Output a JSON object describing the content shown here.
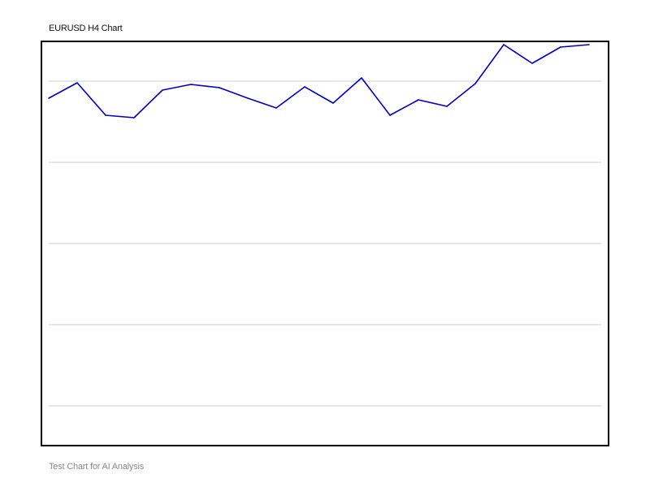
{
  "chart_data": {
    "type": "line",
    "title": "EURUSD H4 Chart",
    "footer": "Test Chart for AI Analysis",
    "xlabel": "",
    "ylabel": "",
    "ylim": [
      0,
      5
    ],
    "grid": true,
    "line_color": "#0000cc",
    "grid_color": "#cccccc",
    "frame_color": "#000000",
    "series": [
      {
        "values": [
          3.79,
          3.98,
          3.58,
          3.55,
          3.89,
          3.96,
          3.92,
          3.79,
          3.67,
          3.93,
          3.73,
          4.04,
          3.58,
          3.77,
          3.69,
          3.97,
          4.45,
          4.22,
          4.42,
          4.45
        ]
      }
    ]
  }
}
